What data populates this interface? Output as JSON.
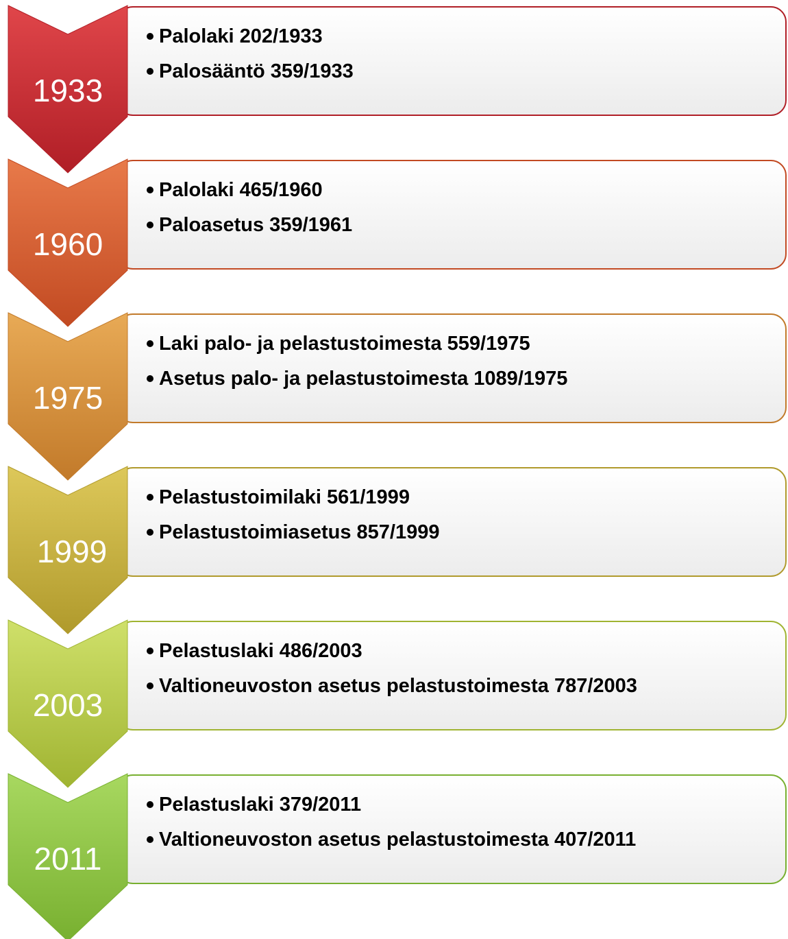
{
  "items": [
    {
      "year": "1933",
      "lines": [
        "Palolaki 202/1933",
        "Palosääntö 359/1933"
      ]
    },
    {
      "year": "1960",
      "lines": [
        "Palolaki 465/1960",
        "Paloasetus 359/1961"
      ]
    },
    {
      "year": "1975",
      "lines": [
        "Laki palo- ja pelastustoimesta 559/1975",
        "Asetus palo- ja pelastustoimesta 1089/1975"
      ]
    },
    {
      "year": "1999",
      "lines": [
        "Pelastustoimilaki 561/1999",
        "Pelastustoimiasetus 857/1999"
      ]
    },
    {
      "year": "2003",
      "lines": [
        "Pelastuslaki 486/2003",
        "Valtioneuvoston asetus pelastustoimesta 787/2003"
      ]
    },
    {
      "year": "2011",
      "lines": [
        "Pelastuslaki 379/2011",
        "Valtioneuvoston asetus pelastustoimesta 407/2011"
      ]
    }
  ]
}
